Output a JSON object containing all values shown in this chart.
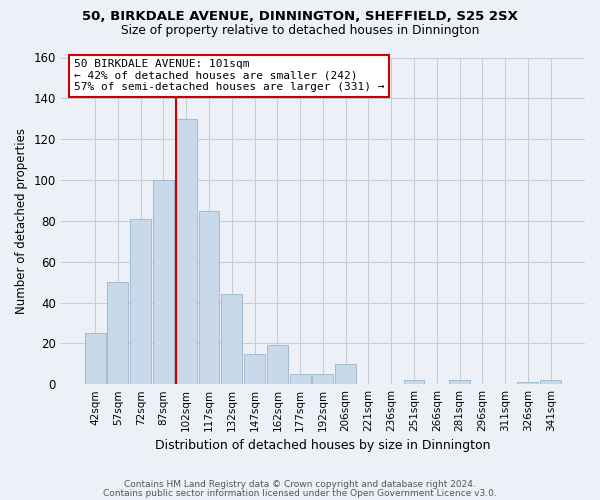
{
  "title1": "50, BIRKDALE AVENUE, DINNINGTON, SHEFFIELD, S25 2SX",
  "title2": "Size of property relative to detached houses in Dinnington",
  "xlabel": "Distribution of detached houses by size in Dinnington",
  "ylabel": "Number of detached properties",
  "footer1": "Contains HM Land Registry data © Crown copyright and database right 2024.",
  "footer2": "Contains public sector information licensed under the Open Government Licence v3.0.",
  "categories": [
    "42sqm",
    "57sqm",
    "72sqm",
    "87sqm",
    "102sqm",
    "117sqm",
    "132sqm",
    "147sqm",
    "162sqm",
    "177sqm",
    "192sqm",
    "206sqm",
    "221sqm",
    "236sqm",
    "251sqm",
    "266sqm",
    "281sqm",
    "296sqm",
    "311sqm",
    "326sqm",
    "341sqm"
  ],
  "values": [
    25,
    50,
    81,
    100,
    130,
    85,
    44,
    15,
    19,
    5,
    5,
    10,
    0,
    0,
    2,
    0,
    2,
    0,
    0,
    1,
    2
  ],
  "bar_color": "#c8d9ea",
  "bar_edge_color": "#9ab5cc",
  "grid_color": "#c5cdd8",
  "background_color": "#edf1f7",
  "annotation_line1": "50 BIRKDALE AVENUE: 101sqm",
  "annotation_line2": "← 42% of detached houses are smaller (242)",
  "annotation_line3": "57% of semi-detached houses are larger (331) →",
  "vline_index": 4,
  "vline_color": "#cc0000",
  "ylim_max": 160,
  "yticks": [
    0,
    20,
    40,
    60,
    80,
    100,
    120,
    140,
    160
  ]
}
